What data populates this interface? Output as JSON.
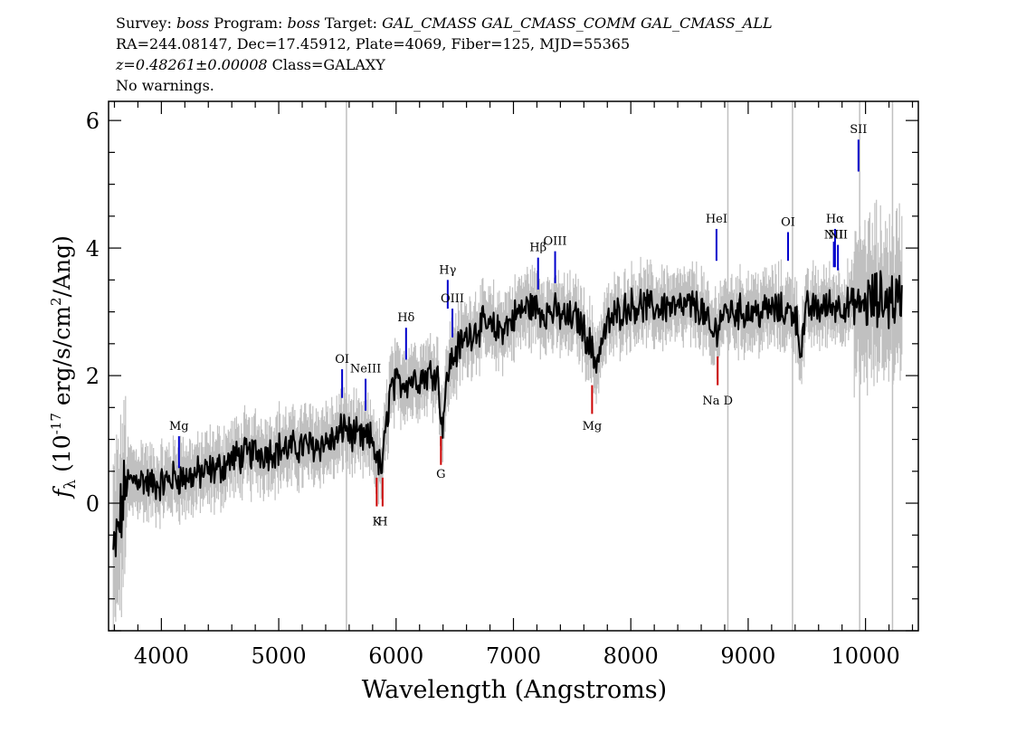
{
  "header": {
    "survey_label": "Survey:",
    "survey": "boss",
    "program_label": "Program:",
    "program": "boss",
    "target_label": "Target:",
    "target": "GAL_CMASS GAL_CMASS_COMM GAL_CMASS_ALL",
    "coords": "RA=244.08147, Dec=17.45912, Plate=4069, Fiber=125, MJD=55365",
    "redshift": "z=0.48261±0.00008",
    "class": "Class=GALAXY",
    "warnings": "No warnings."
  },
  "colors": {
    "flux": "#000000",
    "error": "#c0c0c0",
    "emission": "#0000cc",
    "absorption": "#cc0000",
    "sky": "#c0c0c0"
  },
  "chart_data": {
    "type": "line",
    "xlabel": "Wavelength (Angstroms)",
    "ylabel": "f_λ (10^-17 erg/s/cm^2/Ang)",
    "xlim": [
      3550,
      10450
    ],
    "ylim": [
      -2,
      6.3
    ],
    "xticks": [
      4000,
      5000,
      6000,
      7000,
      8000,
      9000,
      10000
    ],
    "yticks": [
      0,
      2,
      4,
      6
    ],
    "grid": false,
    "series": [
      {
        "x": [
          3600,
          3700,
          3800,
          3900,
          4000,
          4100,
          4200,
          4300,
          4400,
          4500,
          4600,
          4700,
          4800,
          4900,
          5000,
          5100,
          5200,
          5300,
          5400,
          5500,
          5560,
          5600,
          5700,
          5800,
          5850,
          5880,
          5950,
          6050,
          6150,
          6250,
          6350,
          6390,
          6450,
          6550,
          6650,
          6750,
          6850,
          6950,
          7050,
          7150,
          7250,
          7350,
          7450,
          7550,
          7650,
          7700,
          7800,
          7900,
          8000,
          8100,
          8200,
          8300,
          8400,
          8500,
          8600,
          8700,
          8750,
          8800,
          8900,
          9000,
          9100,
          9200,
          9300,
          9400,
          9450,
          9500,
          9600,
          9700,
          9800,
          9900,
          9950,
          10000,
          10100,
          10200,
          10300
        ],
        "y": [
          -0.8,
          0.3,
          0.4,
          0.3,
          0.3,
          0.4,
          0.4,
          0.45,
          0.5,
          0.55,
          0.7,
          0.75,
          0.8,
          0.8,
          0.85,
          0.85,
          0.9,
          0.9,
          0.95,
          1.0,
          1.25,
          1.1,
          1.0,
          1.0,
          0.6,
          0.55,
          1.8,
          1.9,
          1.95,
          2.0,
          2.1,
          1.2,
          2.15,
          2.5,
          2.7,
          2.8,
          2.7,
          2.8,
          3.0,
          3.1,
          3.0,
          3.0,
          2.9,
          2.9,
          2.5,
          2.2,
          2.8,
          3.0,
          3.1,
          3.1,
          3.05,
          3.1,
          3.05,
          3.1,
          3.05,
          2.6,
          2.85,
          3.0,
          3.0,
          3.0,
          3.0,
          3.05,
          3.0,
          3.0,
          2.4,
          3.05,
          3.05,
          3.1,
          3.1,
          3.1,
          3.1,
          3.15,
          3.15,
          3.2,
          3.2
        ]
      }
    ],
    "sky_lines": [
      5577,
      8827,
      9378,
      9950,
      10230
    ],
    "line_labels": [
      {
        "text": "Mg",
        "wavelength": 4150,
        "kind": "emission",
        "y_low": 0.55,
        "y_high": 1.05,
        "y_label": 1.15
      },
      {
        "text": "OI",
        "wavelength": 5540,
        "kind": "emission",
        "y_low": 1.65,
        "y_high": 2.1,
        "y_label": 2.2
      },
      {
        "text": "NeIII",
        "wavelength": 5740,
        "kind": "emission",
        "y_low": 1.45,
        "y_high": 1.95,
        "y_label": 2.05
      },
      {
        "text": "K",
        "wavelength": 5835,
        "kind": "absorption",
        "y_low": -0.05,
        "y_high": 0.4,
        "y_label": -0.35
      },
      {
        "text": "H",
        "wavelength": 5885,
        "kind": "absorption",
        "y_low": -0.05,
        "y_high": 0.4,
        "y_label": -0.35
      },
      {
        "text": "Hδ",
        "wavelength": 6085,
        "kind": "emission",
        "y_low": 2.25,
        "y_high": 2.75,
        "y_label": 2.85
      },
      {
        "text": "G",
        "wavelength": 6382,
        "kind": "absorption",
        "y_low": 0.6,
        "y_high": 1.05,
        "y_label": 0.4
      },
      {
        "text": "Hγ",
        "wavelength": 6440,
        "kind": "emission",
        "y_low": 3.05,
        "y_high": 3.5,
        "y_label": 3.6
      },
      {
        "text": "OIII",
        "wavelength": 6480,
        "kind": "emission",
        "y_low": 2.6,
        "y_high": 3.05,
        "y_label": 3.15
      },
      {
        "text": "Hβ",
        "wavelength": 7210,
        "kind": "emission",
        "y_low": 3.35,
        "y_high": 3.85,
        "y_label": 3.95
      },
      {
        "text": "OIII",
        "wavelength": 7355,
        "kind": "emission",
        "y_low": 3.45,
        "y_high": 3.95,
        "y_label": 4.05
      },
      {
        "text": "Mg",
        "wavelength": 7670,
        "kind": "absorption",
        "y_low": 1.4,
        "y_high": 1.85,
        "y_label": 1.15
      },
      {
        "text": "HeI",
        "wavelength": 8730,
        "kind": "emission",
        "y_low": 3.8,
        "y_high": 4.3,
        "y_label": 4.4
      },
      {
        "text": "Na D",
        "wavelength": 8740,
        "kind": "absorption",
        "y_low": 1.85,
        "y_high": 2.3,
        "y_label": 1.55
      },
      {
        "text": "OI",
        "wavelength": 9340,
        "kind": "emission",
        "y_low": 3.8,
        "y_high": 4.25,
        "y_label": 4.35
      },
      {
        "text": "NII",
        "wavelength": 9730,
        "kind": "emission",
        "y_low": 3.7,
        "y_high": 4.1,
        "y_label": 4.15
      },
      {
        "text": "Hα",
        "wavelength": 9740,
        "kind": "emission",
        "y_low": 3.7,
        "y_high": 4.3,
        "y_label": 4.4
      },
      {
        "text": "NII",
        "wavelength": 9765,
        "kind": "emission",
        "y_low": 3.65,
        "y_high": 4.05,
        "y_label": 4.15
      },
      {
        "text": "SII",
        "wavelength": 9940,
        "kind": "emission",
        "y_low": 5.2,
        "y_high": 5.7,
        "y_label": 5.8
      }
    ]
  }
}
